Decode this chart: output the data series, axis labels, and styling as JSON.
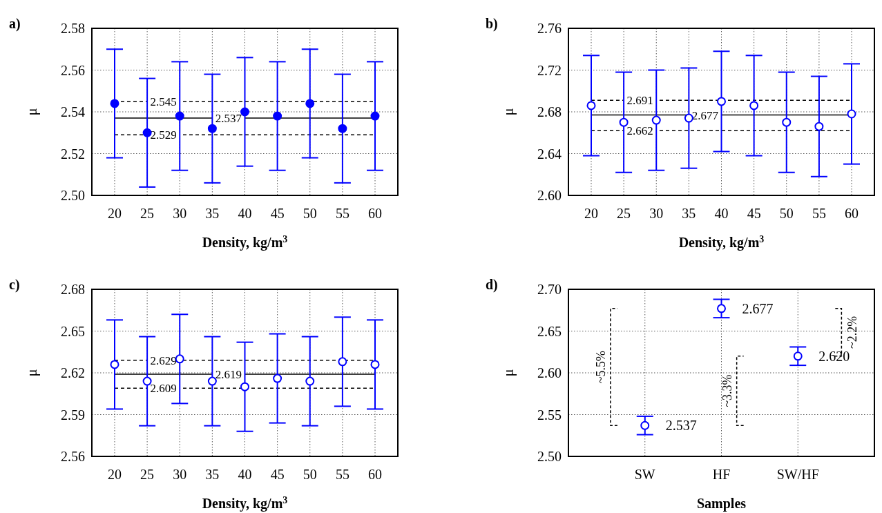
{
  "chart_data": [
    {
      "type": "scatter",
      "title": "a)",
      "xlabel": "Density, kg/m$^{3}$",
      "ylabel": "μ",
      "categories": [
        "20",
        "25",
        "30",
        "35",
        "40",
        "45",
        "50",
        "55",
        "60"
      ],
      "color": "#0000ff",
      "marker": "circle",
      "values": [
        2.544,
        2.53,
        2.538,
        2.532,
        2.54,
        2.538,
        2.544,
        2.532,
        2.538
      ],
      "errors": [
        [
          2.518,
          2.57
        ],
        [
          2.504,
          2.556
        ],
        [
          2.512,
          2.564
        ],
        [
          2.506,
          2.558
        ],
        [
          2.514,
          2.566
        ],
        [
          2.512,
          2.564
        ],
        [
          2.518,
          2.57
        ],
        [
          2.506,
          2.558
        ],
        [
          2.512,
          2.564
        ]
      ],
      "ylim": [
        2.5,
        2.58
      ],
      "yticks": [
        {
          "value": 2.5,
          "label": "2.50"
        },
        2.52,
        2.54,
        2.56,
        2.58
      ],
      "grid": true,
      "ref_lines": [
        {
          "axis": "y",
          "value": 2.545,
          "label": "2.545",
          "line_style": "dashed",
          "color": "#000000"
        },
        {
          "axis": "y",
          "value": 2.537,
          "label": "2.537",
          "line_style": "solid",
          "color": "#000000"
        },
        {
          "axis": "y",
          "value": 2.529,
          "label": "2.529",
          "line_style": "dashed",
          "color": "#000000"
        }
      ]
    },
    {
      "type": "scatter",
      "title": "b)",
      "xlabel": "Density, kg/m$^{3}$",
      "ylabel": "μ",
      "categories": [
        "20",
        "25",
        "30",
        "35",
        "40",
        "45",
        "50",
        "55",
        "60"
      ],
      "color": "#0000ff",
      "marker": "circle",
      "values": [
        2.686,
        2.67,
        2.672,
        2.674,
        2.69,
        2.686,
        2.67,
        2.666,
        2.678
      ],
      "errors": [
        [
          2.638,
          2.734
        ],
        [
          2.622,
          2.718
        ],
        [
          2.624,
          2.72
        ],
        [
          2.626,
          2.722
        ],
        [
          2.642,
          2.738
        ],
        [
          2.638,
          2.734
        ],
        [
          2.622,
          2.718
        ],
        [
          2.618,
          2.714
        ],
        [
          2.63,
          2.726
        ]
      ],
      "ylim": [
        2.6,
        2.76
      ],
      "yticks": [
        {
          "value": 2.6,
          "label": "2.60"
        },
        2.64,
        2.68,
        2.72,
        2.76
      ],
      "grid": true,
      "ref_lines": [
        {
          "axis": "y",
          "value": 2.691,
          "label": "2.691",
          "line_style": "dashed",
          "color": "#000000"
        },
        {
          "axis": "y",
          "value": 2.677,
          "label": "2.677",
          "line_style": "solid",
          "color": "#000000"
        },
        {
          "axis": "y",
          "value": 2.662,
          "label": "2.662",
          "line_style": "dashed",
          "color": "#000000"
        }
      ]
    },
    {
      "type": "scatter",
      "title": "c)",
      "xlabel": "Density, kg/m$^{3}$",
      "ylabel": "μ",
      "categories": [
        "20",
        "25",
        "30",
        "35",
        "40",
        "45",
        "50",
        "55",
        "60"
      ],
      "color": "#0000ff",
      "marker": "circle",
      "values": [
        2.626,
        2.614,
        2.63,
        2.614,
        2.61,
        2.616,
        2.614,
        2.628,
        2.626
      ],
      "errors": [
        [
          2.594,
          2.658
        ],
        [
          2.582,
          2.646
        ],
        [
          2.598,
          2.662
        ],
        [
          2.582,
          2.646
        ],
        [
          2.578,
          2.642
        ],
        [
          2.584,
          2.648
        ],
        [
          2.582,
          2.646
        ],
        [
          2.596,
          2.66
        ],
        [
          2.594,
          2.658
        ]
      ],
      "ylim": [
        2.56,
        2.68
      ],
      "yticks": [
        2.56,
        2.59,
        2.62,
        2.65,
        2.68
      ],
      "grid": true,
      "ref_lines": [
        {
          "axis": "y",
          "value": 2.629,
          "label": "2.629",
          "line_style": "dashed",
          "color": "#000000"
        },
        {
          "axis": "y",
          "value": 2.619,
          "label": "2.619",
          "line_style": "solid",
          "color": "#000000"
        },
        {
          "axis": "y",
          "value": 2.609,
          "label": "2.609",
          "line_style": "dashed",
          "color": "#000000"
        }
      ]
    },
    {
      "type": "scatter",
      "title": "d)",
      "xlabel": "Samples",
      "ylabel": "μ",
      "categories": [
        "SW",
        "HF",
        "SW/HF"
      ],
      "color": "#0000ff",
      "marker": "circle",
      "values": [
        2.537,
        2.677,
        2.62
      ],
      "errors": [
        [
          2.526,
          2.548
        ],
        [
          2.666,
          2.688
        ],
        [
          2.609,
          2.631
        ]
      ],
      "value_labels": [
        "2.537",
        "2.677",
        "2.620"
      ],
      "ylim": [
        2.5,
        2.7
      ],
      "yticks": [
        {
          "value": 2.5,
          "label": "2.50"
        },
        2.55,
        {
          "value": 2.6,
          "label": "2.60"
        },
        2.65,
        {
          "value": 2.7,
          "label": "2.70"
        }
      ],
      "grid": true,
      "annotations": [
        "~5.5%",
        "~3.3%",
        "~2.2%"
      ]
    }
  ]
}
